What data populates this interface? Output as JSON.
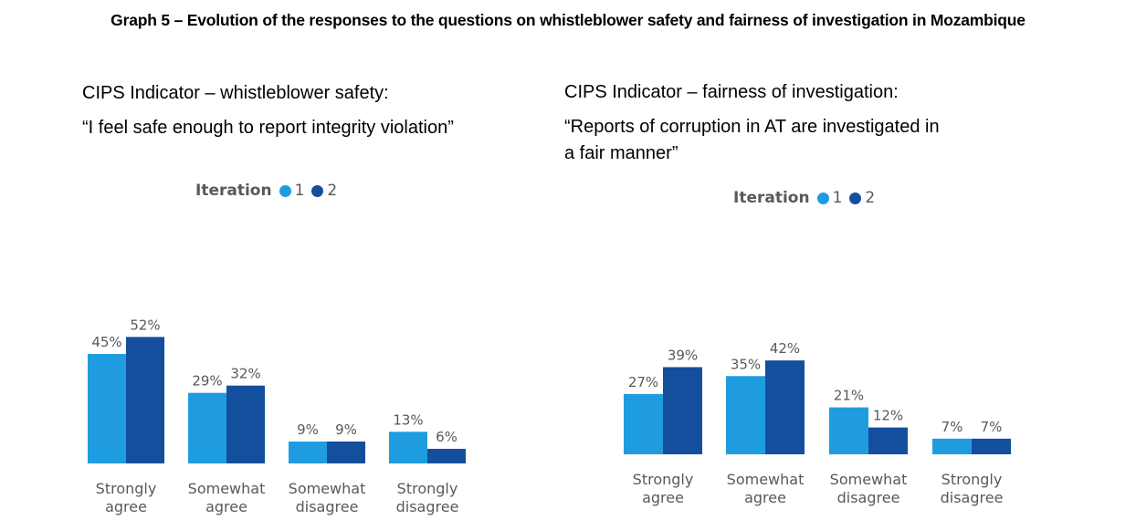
{
  "title": "Graph 5 – Evolution of the responses to the questions on whistleblower safety and fairness of investigation in Mozambique",
  "colors": {
    "iteration_1": "#1f9ce0",
    "iteration_2": "#144f9e",
    "label": "#595959"
  },
  "panels": [
    {
      "indicator": "CIPS Indicator – whistleblower safety:",
      "quote": "“I feel safe enough to report integrity violation”"
    },
    {
      "indicator": "CIPS Indicator – fairness of investigation:",
      "quote": "“Reports of corruption in AT are investigated in a fair manner”"
    }
  ],
  "legend": {
    "title": "Iteration",
    "items": [
      "1",
      "2"
    ]
  },
  "chart_data": [
    {
      "type": "bar",
      "categories": [
        [
          "Strongly",
          "agree"
        ],
        [
          "Somewhat",
          "agree"
        ],
        [
          "Somewhat",
          "disagree"
        ],
        [
          "Strongly",
          "disagree"
        ]
      ],
      "series": [
        {
          "name": "1",
          "values": [
            45,
            29,
            9,
            13
          ],
          "labels": [
            "45%",
            "29%",
            "9%",
            "13%"
          ]
        },
        {
          "name": "2",
          "values": [
            52,
            32,
            9,
            6
          ],
          "labels": [
            "52%",
            "32%",
            "9%",
            "6%"
          ]
        }
      ],
      "legend": {
        "title": "Iteration",
        "position": "top"
      },
      "grid": false
    },
    {
      "type": "bar",
      "categories": [
        [
          "Strongly",
          "agree"
        ],
        [
          "Somewhat",
          "agree"
        ],
        [
          "Somewhat",
          "disagree"
        ],
        [
          "Strongly",
          "disagree"
        ]
      ],
      "series": [
        {
          "name": "1",
          "values": [
            27,
            35,
            21,
            7
          ],
          "labels": [
            "27%",
            "35%",
            "21%",
            "7%"
          ]
        },
        {
          "name": "2",
          "values": [
            39,
            42,
            12,
            7
          ],
          "labels": [
            "39%",
            "42%",
            "12%",
            "7%"
          ]
        }
      ],
      "legend": {
        "title": "Iteration",
        "position": "top"
      },
      "grid": false
    }
  ]
}
